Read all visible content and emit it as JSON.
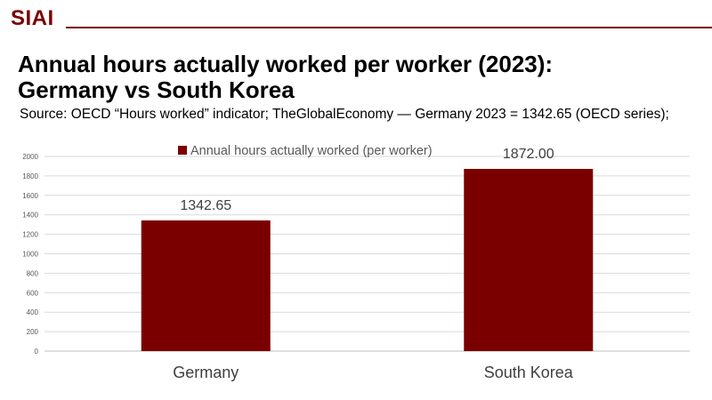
{
  "brand": {
    "logo_text": "SIAI",
    "accent_color": "#7a0000"
  },
  "slide": {
    "title_line1": "Annual hours actually worked per worker (2023):",
    "title_line2": "Germany vs South Korea",
    "subtitle": "Source: OECD “Hours worked” indicator; TheGlobalEconomy — Germany 2023 = 1342.65 (OECD series);"
  },
  "chart_data": {
    "type": "bar",
    "categories": [
      "Germany",
      "South Korea"
    ],
    "series": [
      {
        "name": "Annual hours actually worked (per worker)",
        "values": [
          1342.65,
          1872.0
        ],
        "color": "#7a0000"
      }
    ],
    "data_labels": [
      "1342.65",
      "1872.00"
    ],
    "ylim": [
      0,
      2000
    ],
    "y_ticks": [
      0,
      200,
      400,
      600,
      800,
      1000,
      1200,
      1400,
      1600,
      1800,
      2000
    ],
    "grid": true,
    "legend_position": "top",
    "xlabel": "",
    "ylabel": ""
  }
}
